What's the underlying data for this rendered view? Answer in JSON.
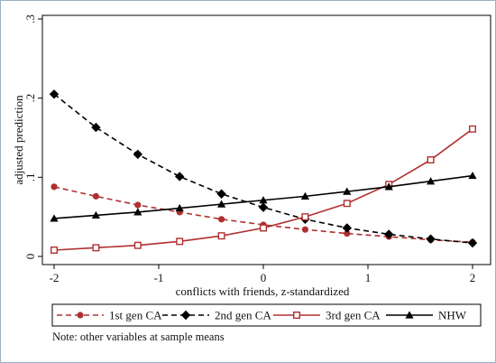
{
  "chart_data": {
    "type": "line",
    "title": "",
    "xlabel": "conflicts with friends, z-standardized",
    "ylabel": "adjusted prediction",
    "xlim": [
      -2,
      2
    ],
    "ylim": [
      0,
      0.3
    ],
    "xticks": [
      -2,
      -1,
      0,
      1,
      2
    ],
    "xtick_labels": [
      "-2",
      "-1",
      "0",
      "1",
      "2"
    ],
    "yticks": [
      0,
      0.1,
      0.2,
      0.3
    ],
    "ytick_labels": [
      "0",
      ".1",
      ".2",
      ".3"
    ],
    "grid": false,
    "legend_position": "bottom",
    "x": [
      -2,
      -1.6,
      -1.2,
      -0.8,
      -0.4,
      0,
      0.4,
      0.8,
      1.2,
      1.6,
      2
    ],
    "series": [
      {
        "name": "1st gen CA",
        "color": "#b03030",
        "dash": "dashed",
        "marker": "circle",
        "values": [
          0.088,
          0.076,
          0.065,
          0.056,
          0.047,
          0.04,
          0.034,
          0.029,
          0.025,
          0.021,
          0.018
        ]
      },
      {
        "name": "2nd gen CA",
        "color": "#000000",
        "dash": "dashed",
        "marker": "diamond",
        "values": [
          0.205,
          0.163,
          0.129,
          0.101,
          0.079,
          0.062,
          0.047,
          0.036,
          0.028,
          0.022,
          0.017
        ]
      },
      {
        "name": "3rd gen CA",
        "color": "#b03030",
        "dash": "solid",
        "marker": "square-hollow",
        "values": [
          0.008,
          0.011,
          0.014,
          0.019,
          0.026,
          0.036,
          0.05,
          0.067,
          0.091,
          0.122,
          0.161
        ]
      },
      {
        "name": "NHW",
        "color": "#000000",
        "dash": "solid",
        "marker": "triangle",
        "values": [
          0.048,
          0.052,
          0.056,
          0.061,
          0.066,
          0.071,
          0.076,
          0.082,
          0.088,
          0.095,
          0.102
        ]
      }
    ],
    "note": "Note: other variables at sample means"
  }
}
